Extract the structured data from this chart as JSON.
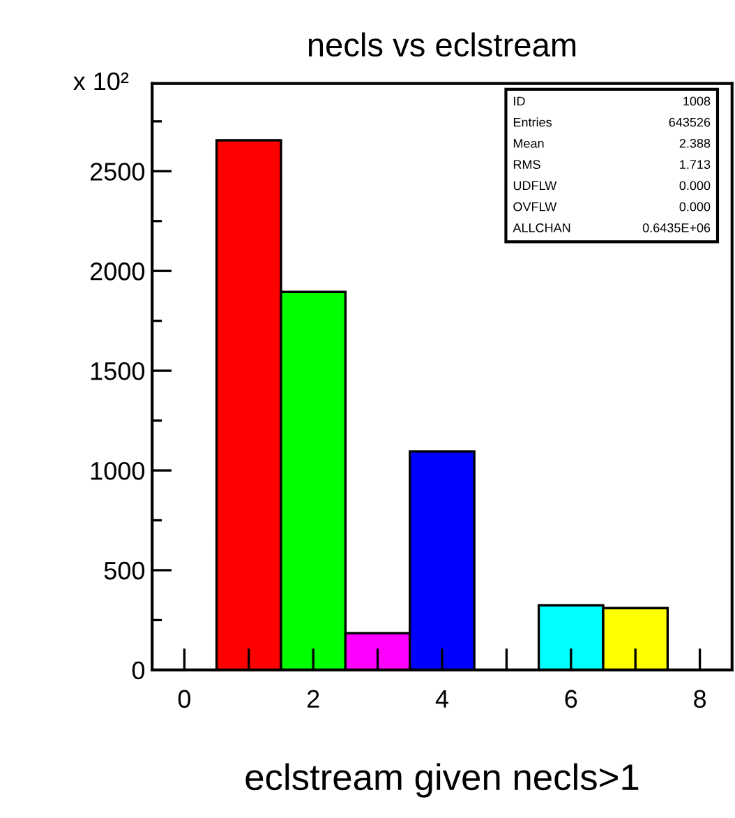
{
  "chart_data": {
    "type": "histogram",
    "title": "necls vs eclstream",
    "xlabel": "eclstream given necls>1",
    "ylabel": "x 10²",
    "bins": [
      -0.5,
      0.5,
      1.5,
      2.5,
      3.5,
      4.5,
      5.5,
      6.5,
      7.5,
      8.5
    ],
    "values": [
      0,
      2655,
      1895,
      184,
      1095,
      0,
      324,
      310,
      0
    ],
    "colors": [
      null,
      "#ff0000",
      "#00ff00",
      "#ff00ff",
      "#0000ff",
      null,
      "#00ffff",
      "#ffff00",
      null
    ],
    "xlim": [
      -0.5,
      8.5
    ],
    "xticks": [
      0,
      {
        "value": 1,
        "label": null
      },
      2,
      {
        "value": 3,
        "label": null
      },
      4,
      {
        "value": 5,
        "label": null
      },
      6,
      {
        "value": 7,
        "label": null
      },
      8
    ],
    "ylim": [
      0,
      2940
    ],
    "yticks": [
      0,
      {
        "value": 250,
        "label": null
      },
      500,
      {
        "value": 750,
        "label": null
      },
      1000,
      {
        "value": 1250,
        "label": null
      },
      1500,
      {
        "value": 1750,
        "label": null
      },
      2000,
      {
        "value": 2250,
        "label": null
      },
      2500,
      {
        "value": 2750,
        "label": null
      }
    ],
    "annotations": [
      "ID",
      "1008",
      "Entries",
      "643526",
      "Mean",
      "2.388",
      "RMS",
      "1.713",
      "UDFLW",
      "0.000",
      "OVFLW",
      "0.000",
      "ALLCHAN",
      "0.6435E+06"
    ],
    "grid": false
  }
}
